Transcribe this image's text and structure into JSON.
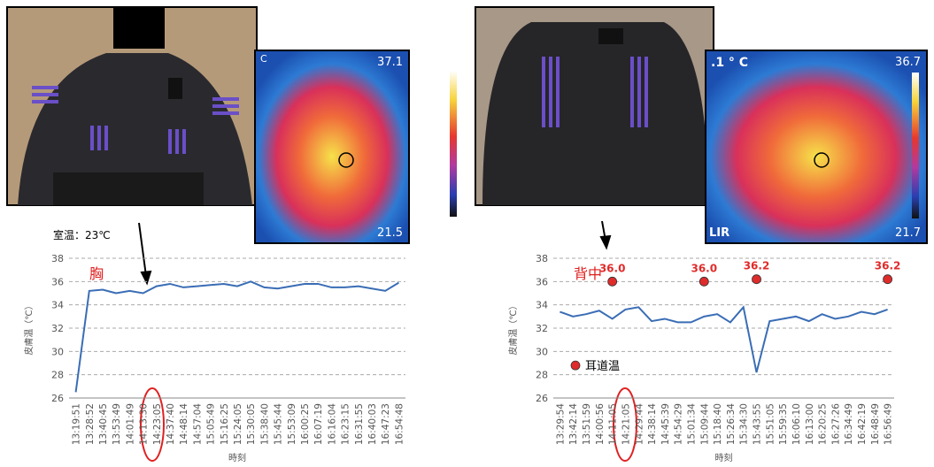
{
  "images": [
    {
      "thermal_max": "37.1",
      "thermal_min": "21.5",
      "thermal_unit": "C"
    },
    {
      "thermal_max": "36.7",
      "thermal_min": "21.7",
      "thermal_unit": ".1 ° C",
      "thermal_brand": "LIR"
    }
  ],
  "chart_data": [
    {
      "type": "line",
      "title": "胸",
      "annotation": "室温：23℃",
      "ylabel": "皮膚温（℃）",
      "xlabel": "時刻",
      "categories": [
        "13:19:51",
        "13:28:52",
        "13:40:45",
        "13:53:49",
        "14:01:49",
        "14:13:30",
        "14:23:05",
        "14:37:40",
        "14:48:14",
        "14:57:04",
        "15:05:49",
        "15:16:25",
        "15:24:05",
        "15:30:05",
        "15:38:40",
        "15:45:44",
        "15:53:09",
        "16:00:25",
        "16:07:19",
        "16:16:04",
        "16:23:15",
        "16:31:55",
        "16:40:03",
        "16:47:23",
        "16:54:48"
      ],
      "series": [
        {
          "color": "#3a6db5",
          "values": [
            26.5,
            35.2,
            35.3,
            35.0,
            35.2,
            35.0,
            35.6,
            35.8,
            35.5,
            35.6,
            35.7,
            35.8,
            35.6,
            36.0,
            35.5,
            35.4,
            35.6,
            35.8,
            35.8,
            35.5,
            35.5,
            35.6,
            35.4,
            35.2,
            35.9
          ]
        }
      ],
      "ylim": [
        26,
        38
      ],
      "yticks": [
        26,
        28,
        30,
        32,
        34,
        36,
        38
      ],
      "grid": true
    },
    {
      "type": "line",
      "title": "背中",
      "ylabel": "皮膚温（℃）",
      "xlabel": "時刻",
      "categories": [
        "13:29:54",
        "13:42:14",
        "13:51:59",
        "14:00:56",
        "14:11:05",
        "14:21:05",
        "14:29:44",
        "14:38:14",
        "14:45:39",
        "14:54:29",
        "15:01:34",
        "15:09:44",
        "15:18:40",
        "15:26:34",
        "15:34:30",
        "15:43:55",
        "15:51:05",
        "15:59:35",
        "16:06:10",
        "16:13:00",
        "16:20:25",
        "16:27:26",
        "16:34:49",
        "16:42:19",
        "16:48:49",
        "16:56:49"
      ],
      "series": [
        {
          "color": "#3a6db5",
          "values": [
            33.4,
            33.0,
            33.2,
            33.5,
            32.8,
            33.6,
            33.8,
            32.6,
            32.8,
            32.5,
            32.5,
            33.0,
            33.2,
            32.5,
            33.8,
            28.2,
            32.6,
            32.8,
            33.0,
            32.6,
            33.2,
            32.8,
            33.0,
            33.4,
            33.2,
            33.6
          ]
        },
        {
          "name": "耳道温",
          "type": "scatter",
          "color": "#e02b2b",
          "values": [
            null,
            null,
            null,
            null,
            36.0,
            null,
            null,
            null,
            null,
            null,
            null,
            36.0,
            null,
            null,
            null,
            36.2,
            null,
            null,
            null,
            null,
            null,
            null,
            null,
            null,
            null,
            36.2
          ],
          "value_labels": [
            null,
            null,
            null,
            null,
            "36.0",
            null,
            null,
            null,
            null,
            null,
            null,
            "36.0",
            null,
            null,
            null,
            "36.2",
            null,
            null,
            null,
            null,
            null,
            null,
            null,
            null,
            null,
            "36.2"
          ]
        }
      ],
      "ylim": [
        26,
        38
      ],
      "yticks": [
        26,
        28,
        30,
        32,
        34,
        36,
        38
      ],
      "grid": true
    }
  ]
}
